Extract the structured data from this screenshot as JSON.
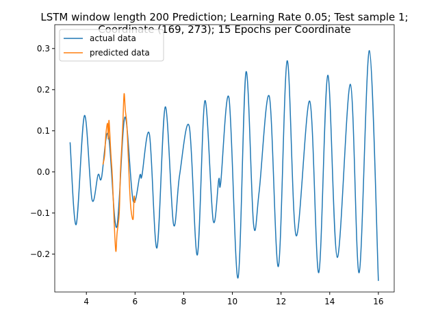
{
  "chart_data": {
    "type": "line",
    "title": "LSTM window length 200 Prediction; Learning Rate 0.05; Test sample 1;\nCoordinate (169, 273); 15 Epochs per Coordinate",
    "legend": "upper left",
    "xlim": [
      2.7,
      16.65
    ],
    "ylim": [
      -0.292,
      0.358
    ],
    "xticks": [
      4,
      6,
      8,
      10,
      12,
      14,
      16
    ],
    "yticks": [
      {
        "value": -0.2,
        "label": "−0.2"
      },
      {
        "value": -0.1,
        "label": "−0.1"
      },
      {
        "value": 0,
        "label": "0.0"
      },
      0.1,
      0.2,
      0.3
    ],
    "series": [
      {
        "name": "actual data",
        "color": "#1f77b4",
        "x": [
          3.33,
          3.58,
          3.92,
          4.23,
          4.48,
          4.62,
          4.9,
          5.24,
          5.58,
          5.92,
          6.2,
          6.28,
          6.59,
          6.9,
          7.24,
          7.58,
          7.83,
          8.23,
          8.56,
          8.87,
          9.21,
          9.44,
          9.52,
          9.86,
          10.23,
          10.56,
          10.87,
          11.1,
          11.52,
          11.89,
          12.25,
          12.62,
          13.18,
          13.55,
          13.92,
          14.31,
          14.85,
          15.21,
          15.63,
          16.0
        ],
        "values": [
          0.072,
          -0.128,
          0.137,
          -0.067,
          -0.007,
          -0.015,
          0.092,
          -0.135,
          0.133,
          -0.07,
          -0.008,
          -0.01,
          0.092,
          -0.185,
          0.158,
          -0.127,
          -0.008,
          0.11,
          -0.202,
          0.173,
          -0.118,
          -0.018,
          -0.027,
          0.18,
          -0.258,
          0.243,
          -0.127,
          -0.048,
          0.183,
          -0.23,
          0.27,
          -0.155,
          0.172,
          -0.245,
          0.235,
          -0.208,
          0.213,
          -0.245,
          0.295,
          -0.265
        ]
      },
      {
        "name": "predicted data",
        "color": "#ff7f0e",
        "x": [
          4.68,
          4.75,
          4.8,
          4.87,
          4.9,
          4.93,
          5.0,
          5.07,
          5.14,
          5.21,
          5.26,
          5.35,
          5.4,
          5.46,
          5.5,
          5.55,
          5.6,
          5.66,
          5.72,
          5.77,
          5.83,
          5.92,
          5.96,
          6.0
        ],
        "values": [
          0.018,
          0.04,
          0.09,
          0.118,
          0.08,
          0.125,
          0.05,
          -0.015,
          -0.12,
          -0.193,
          -0.15,
          -0.1,
          0.0,
          0.068,
          0.12,
          0.19,
          0.15,
          0.118,
          0.04,
          -0.032,
          -0.09,
          -0.115,
          -0.06,
          -0.075
        ]
      }
    ]
  }
}
